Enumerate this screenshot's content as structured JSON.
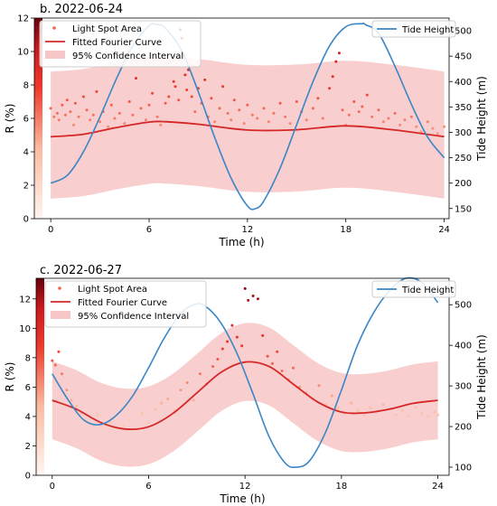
{
  "chart_data": [
    {
      "type": "scatter",
      "panel_label": "b. 2022-06-24",
      "xlabel": "Time (h)",
      "ylabel": "R (%)",
      "y2label": "Tide Height (m)",
      "xlim": [
        -1,
        24.3
      ],
      "ylim": [
        0,
        12
      ],
      "y2lim": [
        130,
        525
      ],
      "x_ticks": [
        0,
        6,
        12,
        18,
        24
      ],
      "y_ticks": [
        0,
        2,
        4,
        6,
        8,
        10,
        12
      ],
      "y2_ticks": [
        150,
        200,
        250,
        300,
        350,
        400,
        450,
        500
      ],
      "legend_left": [
        "Light Spot Area",
        "Fitted Fourier Curve",
        "95% Confidence Interval"
      ],
      "legend_right": [
        "Tide Height"
      ],
      "legend_placement": [
        "upper-left",
        "upper-right"
      ],
      "grid": false,
      "colorbar": "reds",
      "fitted_curve": {
        "x": [
          0,
          2,
          4,
          6,
          7,
          9,
          12,
          15,
          18,
          21,
          24
        ],
        "y": [
          4.9,
          5.05,
          5.45,
          5.78,
          5.8,
          5.65,
          5.3,
          5.32,
          5.55,
          5.3,
          4.9
        ]
      },
      "ci_band": {
        "x": [
          0,
          2,
          4,
          6,
          7,
          9,
          12,
          15,
          18,
          21,
          24
        ],
        "lower": [
          1.2,
          1.35,
          1.75,
          2.08,
          2.1,
          1.95,
          1.6,
          1.62,
          1.85,
          1.6,
          1.2
        ],
        "upper": [
          8.8,
          8.95,
          9.35,
          9.68,
          9.7,
          9.55,
          9.2,
          9.22,
          9.45,
          9.2,
          8.8
        ]
      },
      "tide": {
        "x": [
          0,
          1,
          2,
          3,
          4,
          5,
          6,
          6.5,
          7,
          8,
          9,
          10,
          11,
          12,
          12.5,
          13,
          14,
          15,
          16,
          17,
          18,
          19,
          19.2,
          20,
          21,
          22,
          23,
          24
        ],
        "y": [
          200,
          215,
          262,
          330,
          405,
          470,
          510,
          512,
          505,
          460,
          380,
          290,
          210,
          155,
          150,
          165,
          230,
          315,
          400,
          470,
          508,
          514,
          512,
          495,
          430,
          355,
          290,
          250
        ]
      },
      "scatter": {
        "x": [
          0,
          0.2,
          0.4,
          0.5,
          0.7,
          0.9,
          1,
          1.2,
          1.4,
          1.5,
          1.7,
          2,
          2.2,
          2.4,
          2.6,
          2.8,
          3,
          3.2,
          3.5,
          3.7,
          3.9,
          4.2,
          4.5,
          4.8,
          5,
          5.2,
          5.5,
          5.8,
          6,
          6.2,
          6.5,
          6.7,
          7,
          7.2,
          7.5,
          7.6,
          7.8,
          7.9,
          8,
          8.1,
          8.2,
          8.3,
          8.4,
          8.6,
          8.8,
          9,
          9.2,
          9.4,
          9.6,
          9.8,
          10,
          10.3,
          10.5,
          10.8,
          11,
          11.2,
          11.5,
          11.8,
          12,
          12.3,
          12.6,
          13,
          13.3,
          13.6,
          14,
          14.3,
          14.6,
          15,
          15.3,
          15.6,
          16,
          16.3,
          16.6,
          17,
          17.2,
          17.4,
          17.6,
          17.8,
          18,
          18.2,
          18.5,
          18.8,
          19,
          19.3,
          19.6,
          20,
          20.3,
          20.6,
          21,
          21.3,
          21.6,
          22,
          22.3,
          22.6,
          23,
          23.3,
          23.6,
          24
        ],
        "y": [
          6.6,
          6.1,
          6.3,
          5.9,
          6.8,
          6.2,
          7.1,
          6.4,
          5.6,
          6.9,
          6.1,
          7.3,
          6.5,
          5.9,
          6.2,
          7.6,
          5.8,
          6.4,
          5.5,
          6.8,
          6.0,
          6.3,
          5.7,
          7.0,
          6.2,
          8.4,
          6.6,
          5.9,
          6.8,
          7.5,
          6.1,
          5.6,
          6.9,
          7.3,
          8.2,
          7.9,
          7.1,
          11.3,
          10.8,
          9.8,
          8.6,
          7.7,
          8.9,
          7.3,
          6.4,
          7.8,
          6.9,
          8.3,
          6.1,
          7.2,
          5.8,
          6.6,
          7.9,
          6.3,
          5.9,
          7.1,
          6.5,
          5.7,
          6.8,
          6.2,
          6.0,
          6.6,
          5.8,
          6.3,
          6.9,
          6.1,
          5.7,
          7.0,
          6.4,
          5.9,
          6.6,
          7.2,
          6.0,
          7.8,
          8.5,
          9.4,
          9.9,
          6.5,
          5.6,
          6.2,
          7.0,
          6.4,
          6.7,
          7.4,
          6.1,
          6.5,
          5.8,
          6.0,
          6.3,
          5.6,
          5.9,
          6.1,
          5.5,
          5.2,
          5.8,
          5.4,
          5.1,
          5.5
        ]
      }
    },
    {
      "type": "scatter",
      "panel_label": "c. 2022-06-27",
      "xlabel": "Time (h)",
      "ylabel": "R (%)",
      "y2label": "Tide Height (m)",
      "xlim": [
        -1,
        24.7
      ],
      "ylim": [
        0,
        13.4
      ],
      "y2lim": [
        80,
        565
      ],
      "x_ticks": [
        0,
        6,
        12,
        18,
        24
      ],
      "y_ticks": [
        0,
        2,
        4,
        6,
        8,
        10,
        12
      ],
      "y2_ticks": [
        100,
        200,
        300,
        400,
        500
      ],
      "legend_left": [
        "Light Spot Area",
        "Fitted Fourier Curve",
        "95% Confidence Interval"
      ],
      "legend_right": [
        "Tide Height"
      ],
      "legend_placement": [
        "upper-left",
        "upper-right"
      ],
      "grid": false,
      "colorbar": "reds",
      "fitted_curve": {
        "x": [
          0,
          1.5,
          3,
          4.5,
          6,
          7.5,
          9,
          10.5,
          12,
          13.5,
          15,
          16.5,
          18,
          19.5,
          21,
          22.5,
          24
        ],
        "y": [
          5.1,
          4.5,
          3.6,
          3.15,
          3.3,
          4.2,
          5.6,
          7.0,
          7.7,
          7.4,
          6.2,
          5.0,
          4.3,
          4.25,
          4.5,
          4.9,
          5.1
        ]
      },
      "ci_band": {
        "x": [
          0,
          1.5,
          3,
          4.5,
          6,
          7.5,
          9,
          10.5,
          12,
          13.5,
          15,
          16.5,
          18,
          19.5,
          21,
          22.5,
          24
        ],
        "lower": [
          2.45,
          1.85,
          1.0,
          0.6,
          0.75,
          1.6,
          2.95,
          4.35,
          5.05,
          4.75,
          3.55,
          2.35,
          1.65,
          1.6,
          1.85,
          2.25,
          2.45
        ],
        "upper": [
          7.75,
          7.15,
          6.3,
          5.9,
          6.05,
          6.9,
          8.25,
          9.65,
          10.35,
          10.05,
          8.85,
          7.65,
          6.95,
          6.9,
          7.15,
          7.55,
          7.75
        ]
      },
      "tide": {
        "x": [
          0,
          1,
          2,
          3,
          4,
          5,
          6,
          7,
          8,
          8.8,
          9.5,
          10.5,
          11.5,
          12.5,
          13.5,
          14.5,
          15.2,
          16,
          17,
          18,
          19,
          20,
          21,
          22,
          23,
          24
        ],
        "y": [
          330,
          265,
          215,
          205,
          228,
          275,
          345,
          420,
          478,
          500,
          497,
          455,
          380,
          280,
          175,
          110,
          100,
          115,
          185,
          290,
          400,
          480,
          535,
          565,
          555,
          505
        ]
      },
      "scatter": {
        "x": [
          0,
          0.2,
          0.4,
          0.6,
          0.9,
          1.2,
          1.5,
          1.8,
          2.1,
          2.4,
          2.8,
          3.2,
          3.6,
          4,
          4.4,
          4.8,
          5.2,
          5.6,
          6,
          6.4,
          6.8,
          7.2,
          7.6,
          8,
          8.4,
          8.8,
          9.2,
          9.6,
          10,
          10.3,
          10.6,
          10.9,
          11.2,
          11.5,
          11.8,
          12,
          12.2,
          12.5,
          12.8,
          13.1,
          13.4,
          13.7,
          14,
          14.3,
          14.7,
          15,
          15.4,
          15.8,
          16.2,
          16.6,
          17,
          17.4,
          17.8,
          18.2,
          18.6,
          19,
          19.4,
          19.8,
          20.2,
          20.6,
          21,
          21.4,
          21.8,
          22.2,
          22.6,
          23,
          23.4,
          23.8,
          24
        ],
        "y": [
          7.8,
          7.5,
          8.4,
          6.9,
          5.8,
          5.1,
          4.7,
          4.2,
          3.8,
          3.5,
          4.1,
          3.2,
          3.6,
          3.0,
          3.4,
          3.8,
          3.1,
          4.2,
          3.6,
          4.5,
          4.9,
          5.2,
          4.4,
          5.8,
          6.3,
          5.1,
          6.9,
          6.2,
          7.4,
          7.9,
          8.6,
          9.1,
          10.2,
          9.4,
          8.8,
          12.7,
          11.9,
          12.2,
          12.0,
          9.5,
          8.1,
          7.6,
          8.4,
          7.1,
          6.5,
          7.3,
          6.0,
          5.6,
          5.2,
          6.1,
          4.8,
          5.4,
          4.6,
          4.2,
          4.9,
          4.4,
          4.1,
          4.6,
          4.3,
          4.8,
          4.5,
          4.1,
          4.4,
          4.0,
          4.6,
          4.2,
          4.0,
          4.3,
          4.1
        ]
      }
    }
  ]
}
